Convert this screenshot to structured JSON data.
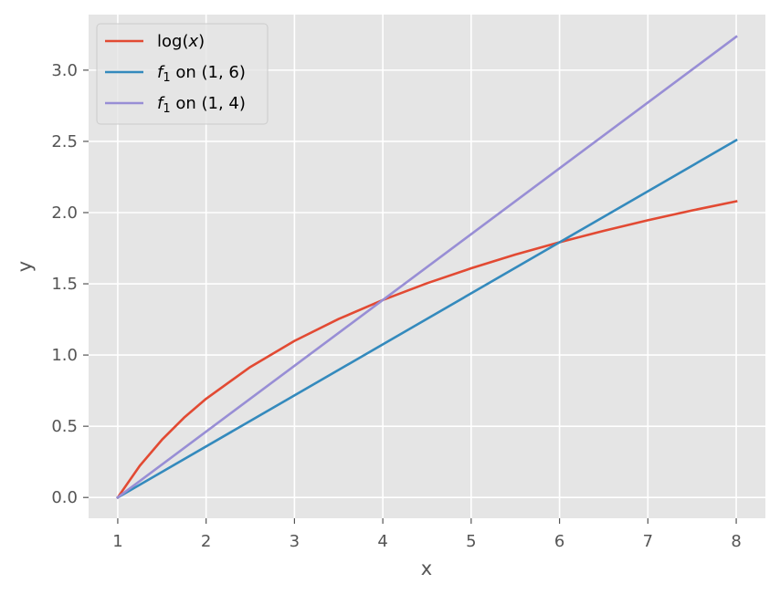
{
  "chart_data": {
    "type": "line",
    "xlabel": "x",
    "ylabel": "y",
    "xlim": [
      0.67,
      8.33
    ],
    "ylim": [
      -0.146,
      3.39
    ],
    "x_ticks": [
      1,
      2,
      3,
      4,
      5,
      6,
      7,
      8
    ],
    "y_ticks": [
      0.0,
      0.5,
      1.0,
      1.5,
      2.0,
      2.5,
      3.0
    ],
    "x_tick_labels": [
      "1",
      "2",
      "3",
      "4",
      "5",
      "6",
      "7",
      "8"
    ],
    "y_tick_labels": [
      "0.0",
      "0.5",
      "1.0",
      "1.5",
      "2.0",
      "2.5",
      "3.0"
    ],
    "grid": true,
    "legend_position": "top-left",
    "series": [
      {
        "name": "log(x)",
        "name_parts": [
          [
            "log(",
            ""
          ],
          [
            "x",
            "it"
          ],
          [
            ")",
            ""
          ]
        ],
        "color": "#e24a33",
        "x": [
          1.0,
          1.25,
          1.5,
          1.75,
          2.0,
          2.5,
          3.0,
          3.5,
          4.0,
          4.5,
          5.0,
          5.5,
          6.0,
          6.5,
          7.0,
          7.5,
          8.0
        ],
        "y": [
          0.0,
          0.223,
          0.405,
          0.56,
          0.693,
          0.916,
          1.099,
          1.253,
          1.386,
          1.504,
          1.609,
          1.705,
          1.792,
          1.872,
          1.946,
          2.015,
          2.079
        ]
      },
      {
        "name": "f1 on (1, 6)",
        "name_parts": [
          [
            "f",
            "it"
          ],
          [
            "1",
            "sub"
          ],
          [
            " on (1, 6)",
            ""
          ]
        ],
        "color": "#348abd",
        "x": [
          1,
          8
        ],
        "y": [
          0.0,
          2.508
        ]
      },
      {
        "name": "f1 on (1, 4)",
        "name_parts": [
          [
            "f",
            "it"
          ],
          [
            "1",
            "sub"
          ],
          [
            " on (1, 4)",
            ""
          ]
        ],
        "color": "#988ed5",
        "x": [
          1,
          8
        ],
        "y": [
          0.0,
          3.235
        ]
      }
    ]
  },
  "style": {
    "plot_background": "#e5e5e5",
    "grid_color": "#ffffff",
    "tick_color": "#555555"
  }
}
